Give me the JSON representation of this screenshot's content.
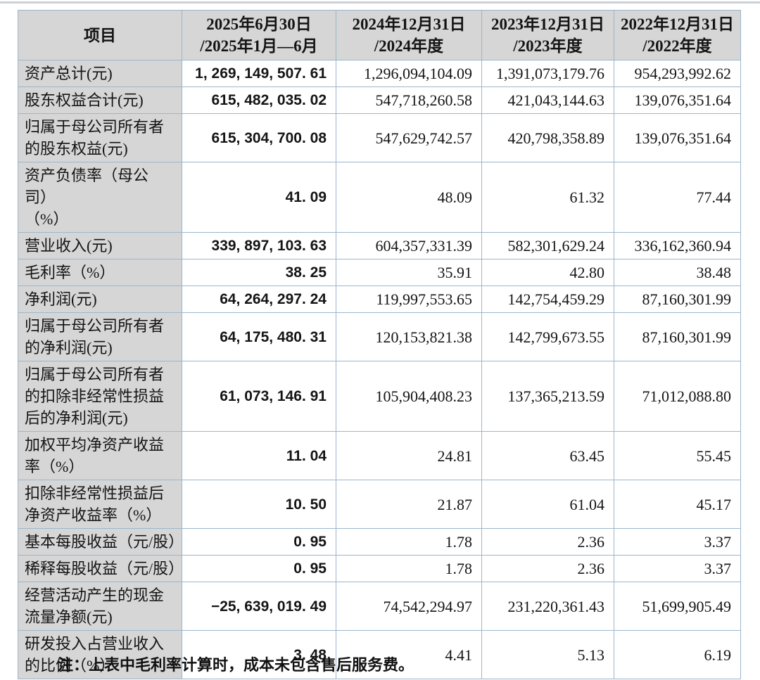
{
  "colors": {
    "header_bg": "#d6d6d6",
    "label_bg": "#d6d6d6",
    "border": "#9cb6ca",
    "cell_bg": "#ffffff",
    "text": "#141414"
  },
  "table": {
    "header": {
      "item_label": "项目",
      "periods": [
        "2025年6月30日\n/2025年1月—6月",
        "2024年12月31日\n/2024年度",
        "2023年12月31日\n/2023年度",
        "2022年12月31日\n/2022年度"
      ]
    },
    "rows": [
      {
        "label": "资产总计(元)",
        "values": [
          "1, 269, 149, 507. 61",
          "1,296,094,104.09",
          "1,391,073,179.76",
          "954,293,992.62"
        ]
      },
      {
        "label": "股东权益合计(元)",
        "values": [
          "615, 482, 035. 02",
          "547,718,260.58",
          "421,043,144.63",
          "139,076,351.64"
        ]
      },
      {
        "label": "归属于母公司所有者\n的股东权益(元)",
        "values": [
          "615, 304, 700. 08",
          "547,629,742.57",
          "420,798,358.89",
          "139,076,351.64"
        ]
      },
      {
        "label": "资产负债率（母公司）\n（%）",
        "values": [
          "41. 09",
          "48.09",
          "61.32",
          "77.44"
        ]
      },
      {
        "label": "营业收入(元)",
        "values": [
          "339, 897, 103. 63",
          "604,357,331.39",
          "582,301,629.24",
          "336,162,360.94"
        ]
      },
      {
        "label": "毛利率（%）",
        "values": [
          "38. 25",
          "35.91",
          "42.80",
          "38.48"
        ]
      },
      {
        "label": "净利润(元)",
        "values": [
          "64, 264, 297. 24",
          "119,997,553.65",
          "142,754,459.29",
          "87,160,301.99"
        ]
      },
      {
        "label": "归属于母公司所有者\n的净利润(元)",
        "values": [
          "64, 175, 480. 31",
          "120,153,821.38",
          "142,799,673.55",
          "87,160,301.99"
        ]
      },
      {
        "label": "归属于母公司所有者\n的扣除非经常性损益\n后的净利润(元)",
        "values": [
          "61, 073, 146. 91",
          "105,904,408.23",
          "137,365,213.59",
          "71,012,088.80"
        ]
      },
      {
        "label": "加权平均净资产收益\n率（%）",
        "values": [
          "11. 04",
          "24.81",
          "63.45",
          "55.45"
        ]
      },
      {
        "label": "扣除非经常性损益后\n净资产收益率（%）",
        "values": [
          "10. 50",
          "21.87",
          "61.04",
          "45.17"
        ]
      },
      {
        "label": "基本每股收益（元/股）",
        "values": [
          "0. 95",
          "1.78",
          "2.36",
          "3.37"
        ]
      },
      {
        "label": "稀释每股收益（元/股）",
        "values": [
          "0. 95",
          "1.78",
          "2.36",
          "3.37"
        ]
      },
      {
        "label": "经营活动产生的现金\n流量净额(元)",
        "values": [
          "−25, 639, 019. 49",
          "74,542,294.97",
          "231,220,361.43",
          "51,699,905.49"
        ]
      },
      {
        "label": "研发投入占营业收入\n的比例（%）",
        "values": [
          "3. 48",
          "4.41",
          "5.13",
          "6.19"
        ]
      }
    ],
    "note": "注：上表中毛利率计算时，成本未包含售后服务费。"
  }
}
